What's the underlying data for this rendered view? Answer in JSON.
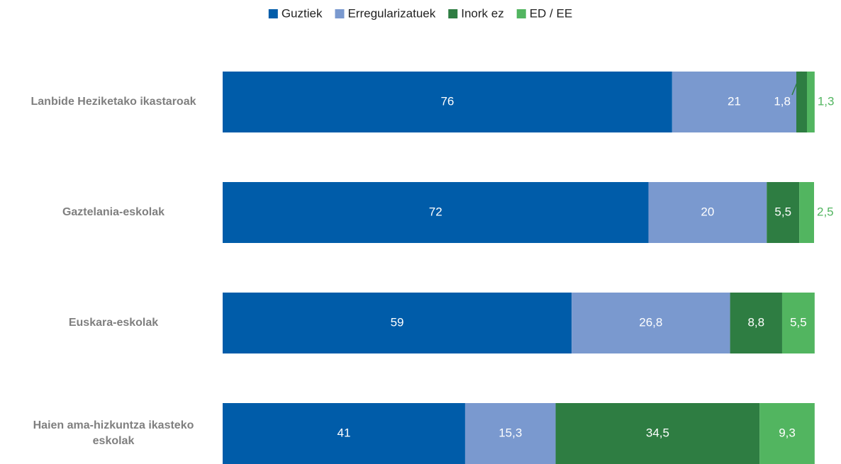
{
  "chart_data": {
    "type": "stacked-bar-horizontal",
    "categories": [
      "Lanbide Heziketako ikastaroak",
      "Gaztelania-eskolak",
      "Euskara-eskolak",
      "Haien ama-hizkuntza ikasteko eskolak"
    ],
    "series": [
      {
        "name": "Guztiek",
        "color": "#005ca9",
        "values": [
          76,
          72,
          59,
          41
        ],
        "value_labels": [
          "76",
          "72",
          "59",
          "41"
        ]
      },
      {
        "name": "Erregularizatuek",
        "color": "#7a99cf",
        "values": [
          21,
          20,
          26.8,
          15.3
        ],
        "value_labels": [
          "21",
          "20",
          "26,8",
          "15,3"
        ]
      },
      {
        "name": "Inork ez",
        "color": "#2e7d42",
        "values": [
          1.8,
          5.5,
          8.8,
          34.5
        ],
        "value_labels": [
          "1,8",
          "5,5",
          "8,8",
          "34,5"
        ]
      },
      {
        "name": "ED / EE",
        "color": "#52b560",
        "values": [
          1.3,
          2.5,
          5.5,
          9.3
        ],
        "value_labels": [
          "1,3",
          "2,5",
          "5,5",
          "9,3"
        ]
      }
    ],
    "legend": "top"
  }
}
